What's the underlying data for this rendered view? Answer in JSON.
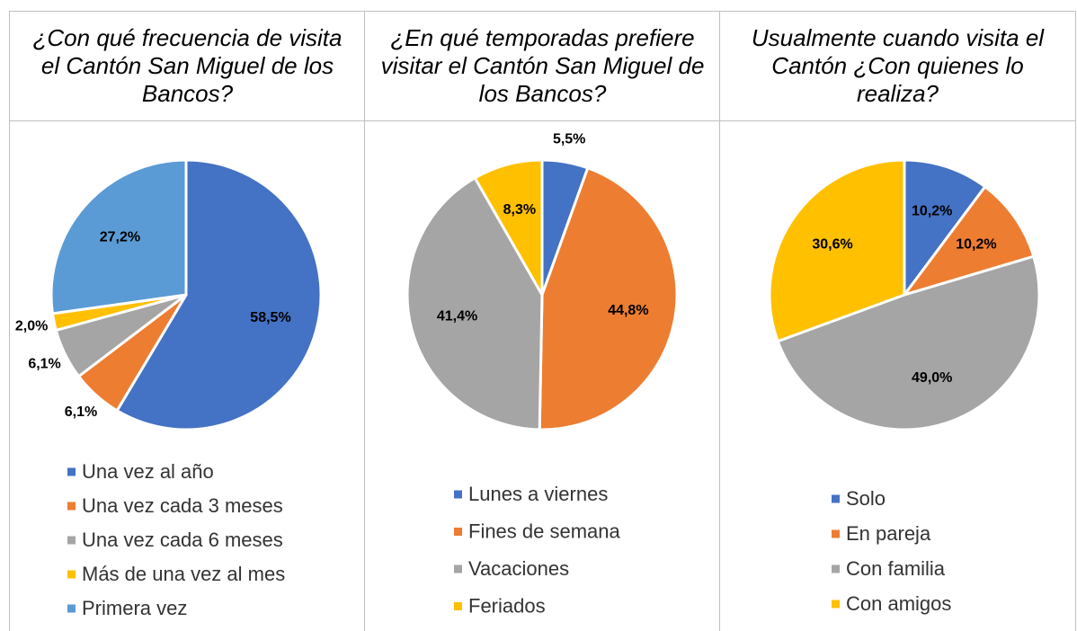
{
  "chart_data": [
    {
      "type": "pie",
      "title": "¿Con qué frecuencia de visita el Cantón San Miguel de los Bancos?",
      "categories": [
        "Una vez al año",
        "Una vez cada 3 meses",
        "Una vez cada 6 meses",
        "Más de una vez al mes",
        "Primera vez"
      ],
      "values": [
        58.5,
        6.1,
        6.1,
        2.0,
        27.2
      ],
      "value_labels": [
        "58,5%",
        "6,1%",
        "6,1%",
        "2,0%",
        "27,2%"
      ],
      "colors": [
        "#4472c4",
        "#ed7d31",
        "#a5a5a5",
        "#ffc000",
        "#5b9bd5"
      ]
    },
    {
      "type": "pie",
      "title": "¿En qué temporadas prefiere visitar el Cantón San Miguel de los Bancos?",
      "categories": [
        "Lunes a viernes",
        "Fines de semana",
        "Vacaciones",
        "Feriados"
      ],
      "values": [
        5.5,
        44.8,
        41.4,
        8.3
      ],
      "value_labels": [
        "5,5%",
        "44,8%",
        "41,4%",
        "8,3%"
      ],
      "colors": [
        "#4472c4",
        "#ed7d31",
        "#a5a5a5",
        "#ffc000"
      ]
    },
    {
      "type": "pie",
      "title": "Usualmente cuando visita el Cantón ¿Con quienes lo realiza?",
      "categories": [
        "Solo",
        "En pareja",
        "Con familia",
        "Con amigos"
      ],
      "values": [
        10.2,
        10.2,
        49.0,
        30.6
      ],
      "value_labels": [
        "10,2%",
        "10,2%",
        "49,0%",
        "30,6%"
      ],
      "colors": [
        "#4472c4",
        "#ed7d31",
        "#a5a5a5",
        "#ffc000"
      ]
    }
  ]
}
